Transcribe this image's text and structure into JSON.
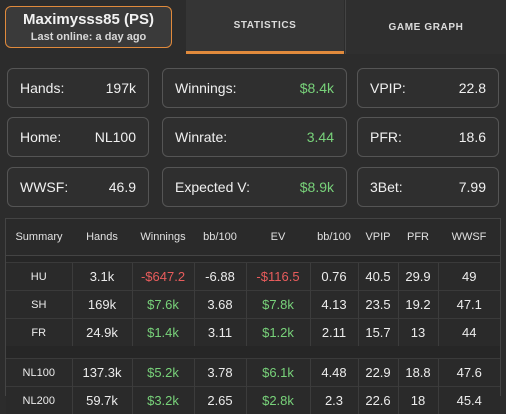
{
  "player": {
    "name": "Maximysss85 (PS)",
    "last_online": "Last online: a day ago"
  },
  "tabs": [
    {
      "label": "STATISTICS",
      "active": true
    },
    {
      "label": "GAME GRAPH",
      "active": false
    }
  ],
  "stats": [
    {
      "label": "Hands:",
      "value": "197k",
      "color": "default"
    },
    {
      "label": "Winnings:",
      "value": "$8.4k",
      "color": "green"
    },
    {
      "label": "VPIP:",
      "value": "22.8",
      "color": "default"
    },
    {
      "label": "Home:",
      "value": "NL100",
      "color": "default"
    },
    {
      "label": "Winrate:",
      "value": "3.44",
      "color": "green"
    },
    {
      "label": "PFR:",
      "value": "18.6",
      "color": "default"
    },
    {
      "label": "WWSF:",
      "value": "46.9",
      "color": "default"
    },
    {
      "label": "Expected V:",
      "value": "$8.9k",
      "color": "green"
    },
    {
      "label": "3Bet:",
      "value": "7.99",
      "color": "default"
    }
  ],
  "table": {
    "headers": [
      "Summary",
      "Hands",
      "Winnings",
      "bb/100",
      "EV",
      "bb/100",
      "VPIP",
      "PFR",
      "WWSF"
    ],
    "groups": [
      [
        [
          "HU",
          "3.1k",
          "-$647.2",
          "-6.88",
          "-$116.5",
          "0.76",
          "40.5",
          "29.9",
          "49"
        ],
        [
          "SH",
          "169k",
          "$7.6k",
          "3.68",
          "$7.8k",
          "4.13",
          "23.5",
          "19.2",
          "47.1"
        ],
        [
          "FR",
          "24.9k",
          "$1.4k",
          "3.11",
          "$1.2k",
          "2.11",
          "15.7",
          "13",
          "44"
        ]
      ],
      [
        [
          "NL100",
          "137.3k",
          "$5.2k",
          "3.78",
          "$6.1k",
          "4.48",
          "22.9",
          "18.8",
          "47.6"
        ],
        [
          "NL200",
          "59.7k",
          "$3.2k",
          "2.65",
          "$2.8k",
          "2.3",
          "22.6",
          "18",
          "45.4"
        ]
      ]
    ]
  },
  "colors": {
    "accent": "#e08a3c",
    "positive": "#78d27a",
    "negative": "#e85c5c"
  }
}
